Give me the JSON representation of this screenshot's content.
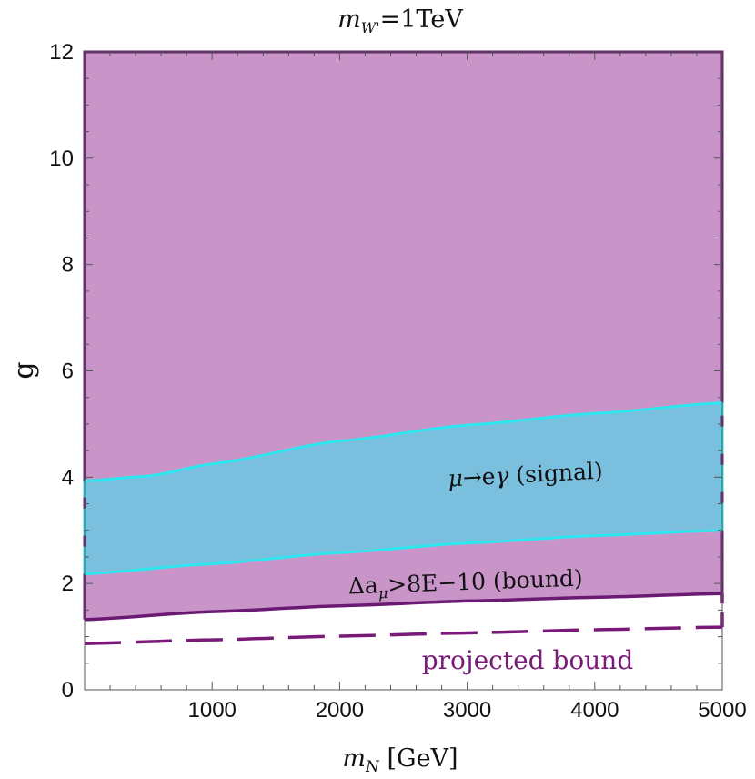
{
  "chart_data": {
    "type": "area",
    "title_prefix": "m",
    "title_sub": "W'",
    "title_suffix": "=1TeV",
    "xlabel_prefix": "m",
    "xlabel_sub": "N",
    "xlabel_suffix": " [GeV]",
    "ylabel": "g",
    "xlim": [
      0,
      5000
    ],
    "ylim": [
      0,
      12
    ],
    "x_ticks": [
      1000,
      2000,
      3000,
      4000,
      5000
    ],
    "y_ticks": [
      0,
      2,
      4,
      6,
      8,
      10,
      12
    ],
    "grid": false,
    "colors": {
      "excluded_fill": "#c995c9",
      "excluded_line": "#6b1a73",
      "signal_fill": "#7bbfde",
      "signal_line": "#2ee6ef",
      "projected_line": "#7a1a78",
      "projected_label": "#7a1a7a"
    },
    "series": [
      {
        "name": "Δa_μ>8E-10 (bound)",
        "x": [
          0,
          1000,
          2000,
          3000,
          4000,
          5000
        ],
        "values": [
          1.32,
          1.47,
          1.58,
          1.67,
          1.74,
          1.81
        ]
      },
      {
        "name": "μ→eγ (signal) lower",
        "x": [
          0,
          1000,
          2000,
          3000,
          4000,
          5000
        ],
        "values": [
          2.18,
          2.37,
          2.58,
          2.76,
          2.9,
          3.0
        ]
      },
      {
        "name": "μ→eγ (signal) upper",
        "x": [
          0,
          500,
          1000,
          2000,
          3000,
          4000,
          5000
        ],
        "values": [
          3.93,
          4.02,
          4.25,
          4.68,
          4.98,
          5.2,
          5.4
        ]
      },
      {
        "name": "projected bound",
        "x": [
          0,
          1000,
          2000,
          3000,
          4000,
          5000
        ],
        "values": [
          0.87,
          0.94,
          1.01,
          1.07,
          1.13,
          1.18
        ]
      }
    ],
    "annotations": {
      "signal_mu": "μ",
      "signal_arrow": "→",
      "signal_e": "e",
      "signal_gamma": "γ",
      "signal_tail": " (signal)",
      "bound_delta": "Δa",
      "bound_sub": "μ",
      "bound_tail": ">8E−10 (bound)",
      "projected": "projected bound"
    }
  }
}
